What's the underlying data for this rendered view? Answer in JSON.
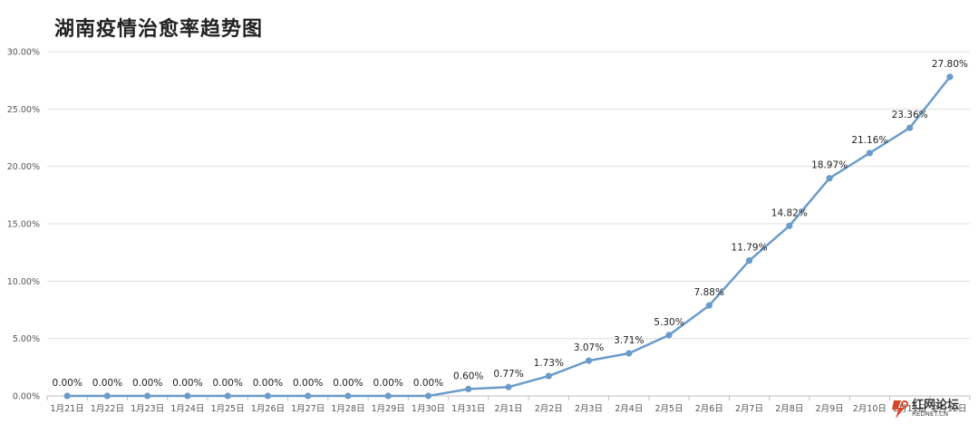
{
  "chart_data": {
    "type": "line",
    "title": "湖南疫情治愈率趋势图",
    "categories": [
      "1月21日",
      "1月22日",
      "1月23日",
      "1月24日",
      "1月25日",
      "1月26日",
      "1月27日",
      "1月28日",
      "1月29日",
      "1月30日",
      "1月31日",
      "2月1日",
      "2月2日",
      "2月3日",
      "2月4日",
      "2月5日",
      "2月6日",
      "2月7日",
      "2月8日",
      "2月9日",
      "2月10日",
      "2月11日",
      "2月12日"
    ],
    "series": [
      {
        "values": [
          0.0,
          0.0,
          0.0,
          0.0,
          0.0,
          0.0,
          0.0,
          0.0,
          0.0,
          0.0,
          0.6,
          0.77,
          1.73,
          3.07,
          3.71,
          5.3,
          7.88,
          11.79,
          14.82,
          18.97,
          21.16,
          23.36,
          27.8
        ],
        "labels": [
          "0.00%",
          "0.00%",
          "0.00%",
          "0.00%",
          "0.00%",
          "0.00%",
          "0.00%",
          "0.00%",
          "0.00%",
          "0.00%",
          "0.60%",
          "0.77%",
          "1.73%",
          "3.07%",
          "3.71%",
          "5.30%",
          "7.88%",
          "11.79%",
          "14.82%",
          "18.97%",
          "21.16%",
          "23.36%",
          "27.80%"
        ]
      }
    ],
    "ylim": [
      0,
      30
    ],
    "yticks": [
      0,
      5,
      10,
      15,
      20,
      25,
      30
    ],
    "ytick_labels": [
      "0.00%",
      "5.00%",
      "10.00%",
      "15.00%",
      "20.00%",
      "25.00%",
      "30.00%"
    ],
    "grid": true,
    "legend": "none",
    "line_color": "#6A9BCB",
    "grid_color": "#E0E0E0"
  },
  "watermark": {
    "text": "红网论坛",
    "sub": "REDNET.CN",
    "icon": "rednet-logo-icon",
    "color": "#D9452B"
  }
}
